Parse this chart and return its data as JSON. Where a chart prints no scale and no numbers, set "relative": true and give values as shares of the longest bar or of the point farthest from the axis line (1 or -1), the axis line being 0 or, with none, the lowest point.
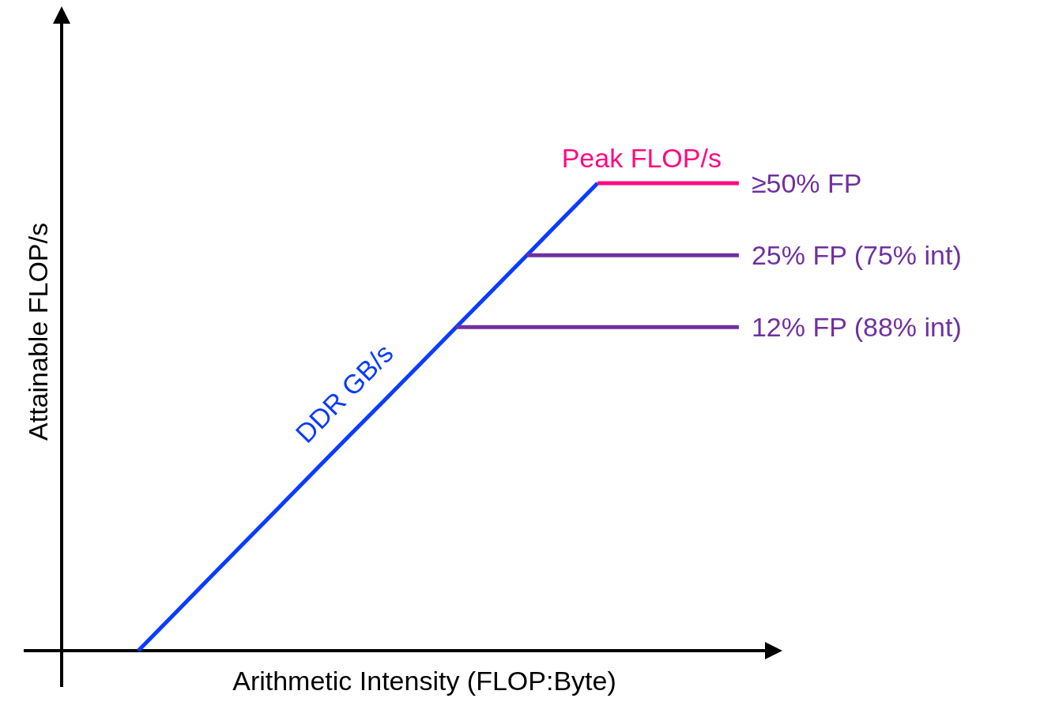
{
  "chart_data": {
    "type": "line",
    "xlabel": "Arithmetic Intensity (FLOP:Byte)",
    "ylabel": "Attainable FLOP/s",
    "relative": true,
    "categories": [
      null,
      null,
      null,
      null,
      null,
      null,
      null,
      null,
      null,
      null,
      null,
      null,
      null,
      null,
      null,
      null,
      null,
      null
    ],
    "series": [
      {
        "name": "DDR GB/s",
        "color": "#0a3cff",
        "values": [
          0,
          0.077,
          0.154,
          0.231,
          0.308,
          0.385,
          0.462,
          0.538,
          0.615,
          0.692,
          0.769,
          0.846,
          0.923,
          1,
          null,
          null,
          null,
          null
        ]
      },
      {
        "name": "Peak FLOP/s",
        "color": "#ff0a80",
        "values": [
          null,
          null,
          null,
          null,
          null,
          null,
          null,
          null,
          null,
          null,
          null,
          null,
          null,
          1,
          1,
          1,
          1,
          1
        ]
      },
      {
        "name": "25% FP (75% int)",
        "color": "#7030a0",
        "values": [
          null,
          null,
          null,
          null,
          null,
          null,
          null,
          null,
          null,
          null,
          null,
          0.846,
          0.846,
          0.846,
          0.846,
          0.846,
          0.846,
          0.846
        ]
      },
      {
        "name": "12% FP (88% int)",
        "color": "#7030a0",
        "values": [
          null,
          null,
          null,
          null,
          null,
          null,
          null,
          null,
          null,
          0.692,
          0.692,
          0.692,
          0.692,
          0.692,
          0.692,
          0.692,
          0.692,
          0.692
        ]
      }
    ],
    "annotations": [
      "≥50% FP"
    ]
  }
}
